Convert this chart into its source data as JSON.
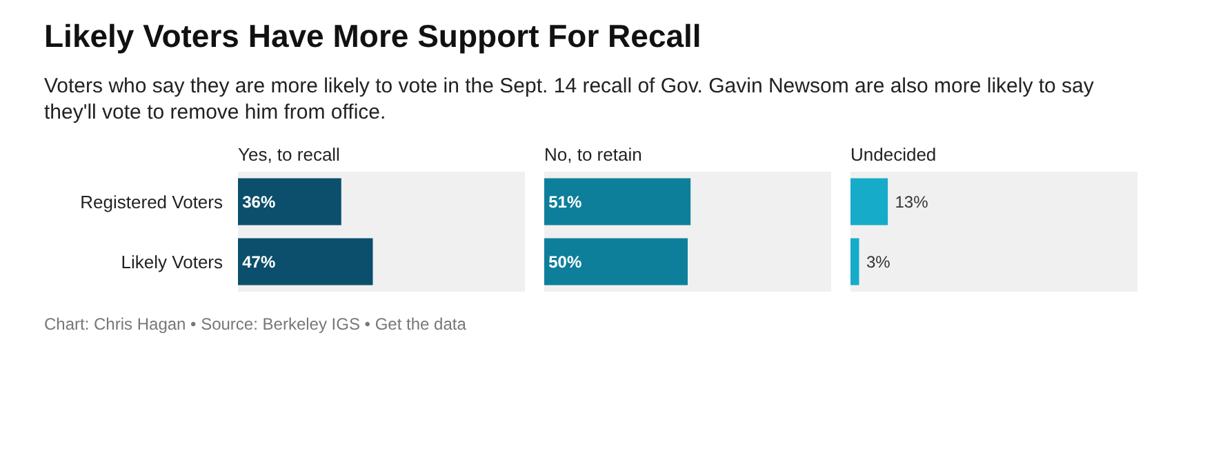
{
  "chart_data": [
    {
      "type": "bar",
      "orientation": "horizontal",
      "title": "Likely Voters Have More Support For Recall",
      "subtitle": "Voters who say they are more likely to vote in the Sept. 14 recall of Gov. Gavin Newsom are also more likely to say they'll vote to remove him from office.",
      "xlabel": "Yes, to recall",
      "categories": [
        "Registered Voters",
        "Likely Voters"
      ],
      "values": [
        36,
        47
      ],
      "color": "#0b4f6c",
      "xlim": [
        0,
        100
      ],
      "data_labels": true,
      "value_labels": [
        "36%",
        "47%"
      ],
      "tick_labels": "y",
      "grid": false,
      "legend": false,
      "annotations": [
        "Chart: Chris Hagan • Source: Berkeley IGS • Get the data"
      ]
    },
    {
      "type": "bar",
      "orientation": "horizontal",
      "xlabel": "No, to retain",
      "categories": [
        null,
        null
      ],
      "values": [
        51,
        50
      ],
      "color": "#0e7f9b",
      "xlim": [
        0,
        100
      ],
      "data_labels": true,
      "value_labels": [
        "51%",
        "50%"
      ],
      "tick_labels": false,
      "grid": false,
      "legend": false
    },
    {
      "type": "bar",
      "orientation": "horizontal",
      "xlabel": "Undecided",
      "categories": [
        null,
        null
      ],
      "values": [
        13,
        3
      ],
      "color": "#16abc8",
      "xlim": [
        0,
        100
      ],
      "data_labels": true,
      "value_labels": [
        "13%",
        "3%"
      ],
      "tick_labels": false,
      "grid": false,
      "legend": false
    }
  ]
}
